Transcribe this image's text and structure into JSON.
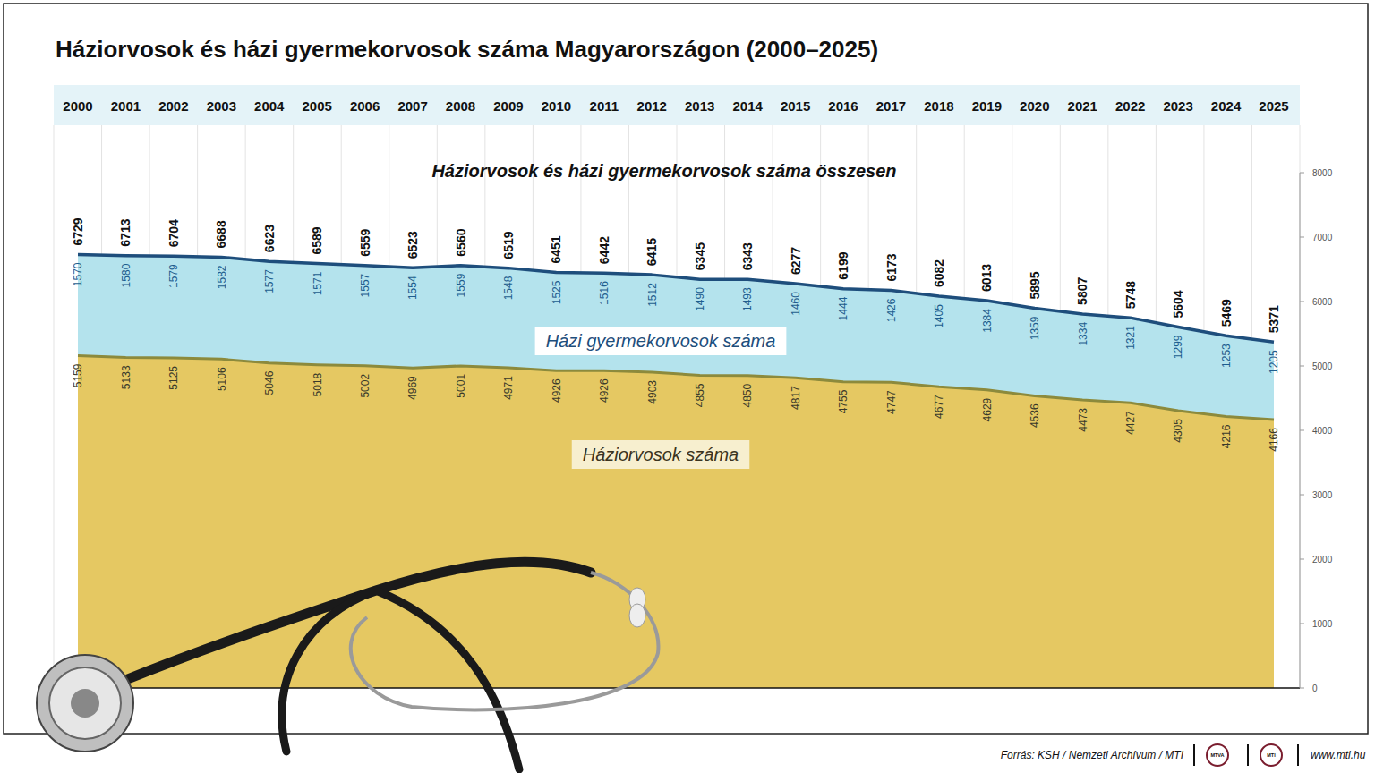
{
  "chart_data": {
    "type": "area",
    "title": "Háziorvosok és házi gyermekorvosok száma Magyarországon (2000–2025)",
    "categories": [
      "2000",
      "2001",
      "2002",
      "2003",
      "2004",
      "2005",
      "2006",
      "2007",
      "2008",
      "2009",
      "2010",
      "2011",
      "2012",
      "2013",
      "2014",
      "2015",
      "2016",
      "2017",
      "2018",
      "2019",
      "2020",
      "2021",
      "2022",
      "2023",
      "2024",
      "2025"
    ],
    "series": [
      {
        "name": "Háziorvosok száma",
        "color": "#e5c862",
        "values": [
          5159,
          5133,
          5125,
          5106,
          5046,
          5018,
          5002,
          4969,
          5001,
          4971,
          4926,
          4926,
          4903,
          4855,
          4850,
          4817,
          4755,
          4747,
          4677,
          4629,
          4536,
          4473,
          4427,
          4305,
          4216,
          4166
        ]
      },
      {
        "name": "Házi gyermekorvosok száma",
        "color": "#b4e3ed",
        "values": [
          1570,
          1580,
          1579,
          1582,
          1577,
          1571,
          1557,
          1554,
          1559,
          1548,
          1525,
          1516,
          1512,
          1490,
          1493,
          1460,
          1444,
          1426,
          1405,
          1384,
          1359,
          1334,
          1321,
          1299,
          1253,
          1205
        ]
      }
    ],
    "totals": {
      "name": "Háziorvosok és házi gyermekorvosok száma összesen",
      "values": [
        6729,
        6713,
        6704,
        6688,
        6623,
        6589,
        6559,
        6523,
        6560,
        6519,
        6451,
        6442,
        6415,
        6345,
        6343,
        6277,
        6199,
        6173,
        6082,
        6013,
        5895,
        5807,
        5748,
        5604,
        5469,
        5371
      ]
    },
    "stacked": true,
    "data_labels": true,
    "ylim": [
      0,
      8000
    ],
    "yticks": [
      0,
      1000,
      2000,
      3000,
      4000,
      5000,
      6000,
      7000,
      8000
    ],
    "source": "Forrás: KSH / Nemzeti Archívum / MTI",
    "logos": [
      "MTVA",
      "MTI"
    ],
    "website": "www.mti.hu"
  }
}
